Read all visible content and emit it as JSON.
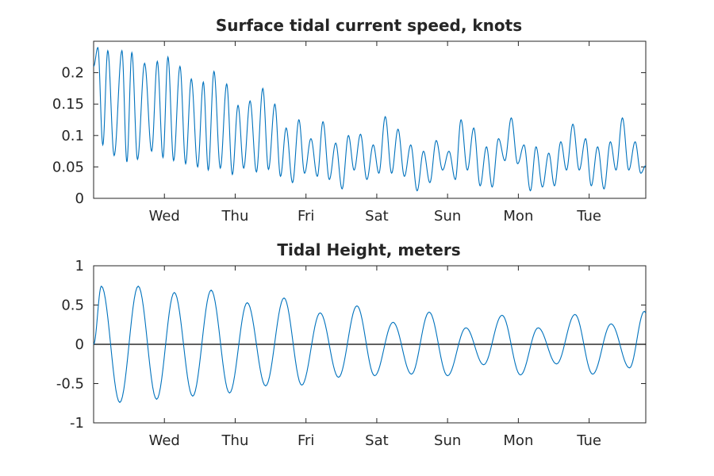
{
  "colors": {
    "series": "#0072bd",
    "axis": "#262626",
    "zero_line": "#000000",
    "background": "#ffffff"
  },
  "chart_data": [
    {
      "id": "speed",
      "type": "line",
      "title": "Surface tidal current speed, knots",
      "xlabel": "",
      "ylabel": "",
      "xlim": [
        0,
        7.8
      ],
      "ylim": [
        0,
        0.25
      ],
      "grid": false,
      "legend": "none",
      "x_ticks": [
        {
          "x": 1.0,
          "label": "Wed"
        },
        {
          "x": 2.0,
          "label": "Thu"
        },
        {
          "x": 3.0,
          "label": "Fri"
        },
        {
          "x": 4.0,
          "label": "Sat"
        },
        {
          "x": 5.0,
          "label": "Sun"
        },
        {
          "x": 6.0,
          "label": "Mon"
        },
        {
          "x": 7.0,
          "label": "Tue"
        }
      ],
      "y_ticks": [
        {
          "y": 0,
          "label": "0"
        },
        {
          "y": 0.05,
          "label": "0.05"
        },
        {
          "y": 0.1,
          "label": "0.1"
        },
        {
          "y": 0.15,
          "label": "0.15"
        },
        {
          "y": 0.2,
          "label": "0.2"
        }
      ],
      "series": [
        {
          "x": [
            0,
            0.06,
            0.13,
            0.2,
            0.29,
            0.4,
            0.47,
            0.54,
            0.62,
            0.72,
            0.82,
            0.9,
            0.98,
            1.05,
            1.13,
            1.22,
            1.3,
            1.38,
            1.47,
            1.55,
            1.62,
            1.7,
            1.79,
            1.88,
            1.96,
            2.04,
            2.12,
            2.21,
            2.3,
            2.39,
            2.47,
            2.56,
            2.64,
            2.72,
            2.81,
            2.9,
            2.98,
            3.07,
            3.16,
            3.24,
            3.33,
            3.42,
            3.51,
            3.6,
            3.68,
            3.77,
            3.86,
            3.95,
            4.03,
            4.12,
            4.21,
            4.3,
            4.39,
            4.48,
            4.57,
            4.66,
            4.75,
            4.84,
            4.93,
            5.02,
            5.11,
            5.19,
            5.28,
            5.37,
            5.46,
            5.55,
            5.63,
            5.72,
            5.81,
            5.9,
            5.99,
            6.08,
            6.17,
            6.25,
            6.34,
            6.43,
            6.51,
            6.6,
            6.68,
            6.77,
            6.86,
            6.95,
            7.03,
            7.12,
            7.21,
            7.3,
            7.38,
            7.47,
            7.56,
            7.65,
            7.73,
            7.8
          ],
          "y": [
            0.21,
            0.24,
            0.085,
            0.235,
            0.068,
            0.235,
            0.058,
            0.232,
            0.062,
            0.215,
            0.075,
            0.218,
            0.065,
            0.225,
            0.06,
            0.21,
            0.055,
            0.19,
            0.05,
            0.185,
            0.045,
            0.202,
            0.048,
            0.182,
            0.038,
            0.148,
            0.048,
            0.155,
            0.042,
            0.175,
            0.046,
            0.15,
            0.035,
            0.112,
            0.025,
            0.125,
            0.04,
            0.095,
            0.035,
            0.122,
            0.03,
            0.088,
            0.015,
            0.1,
            0.045,
            0.102,
            0.03,
            0.085,
            0.04,
            0.13,
            0.04,
            0.11,
            0.035,
            0.085,
            0.012,
            0.075,
            0.025,
            0.092,
            0.045,
            0.075,
            0.03,
            0.125,
            0.045,
            0.112,
            0.02,
            0.082,
            0.018,
            0.095,
            0.06,
            0.128,
            0.055,
            0.085,
            0.012,
            0.082,
            0.018,
            0.072,
            0.02,
            0.09,
            0.045,
            0.118,
            0.045,
            0.095,
            0.02,
            0.082,
            0.015,
            0.09,
            0.045,
            0.128,
            0.045,
            0.09,
            0.04,
            0.052
          ]
        }
      ]
    },
    {
      "id": "height",
      "type": "line",
      "title": "Tidal Height, meters",
      "xlabel": "",
      "ylabel": "",
      "xlim": [
        0,
        7.8
      ],
      "ylim": [
        -1,
        1
      ],
      "grid": false,
      "legend": "none",
      "reference_line_y": 0,
      "x_ticks": [
        {
          "x": 1.0,
          "label": "Wed"
        },
        {
          "x": 2.0,
          "label": "Thu"
        },
        {
          "x": 3.0,
          "label": "Fri"
        },
        {
          "x": 4.0,
          "label": "Sat"
        },
        {
          "x": 5.0,
          "label": "Sun"
        },
        {
          "x": 6.0,
          "label": "Mon"
        },
        {
          "x": 7.0,
          "label": "Tue"
        }
      ],
      "y_ticks": [
        {
          "y": -1,
          "label": "-1"
        },
        {
          "y": -0.5,
          "label": "-0.5"
        },
        {
          "y": 0,
          "label": "0"
        },
        {
          "y": 0.5,
          "label": "0.5"
        },
        {
          "y": 1,
          "label": "1"
        }
      ],
      "series": [
        {
          "x": [
            0,
            0.11,
            0.37,
            0.63,
            0.89,
            1.14,
            1.4,
            1.66,
            1.92,
            2.17,
            2.43,
            2.69,
            2.94,
            3.2,
            3.46,
            3.72,
            3.97,
            4.23,
            4.49,
            4.74,
            5.0,
            5.26,
            5.51,
            5.77,
            6.03,
            6.28,
            6.54,
            6.8,
            7.05,
            7.31,
            7.57,
            7.78,
            7.8
          ],
          "y": [
            0.0,
            0.74,
            -0.74,
            0.74,
            -0.7,
            0.66,
            -0.66,
            0.69,
            -0.62,
            0.53,
            -0.53,
            0.59,
            -0.52,
            0.4,
            -0.42,
            0.49,
            -0.4,
            0.28,
            -0.38,
            0.41,
            -0.4,
            0.21,
            -0.26,
            0.37,
            -0.39,
            0.21,
            -0.25,
            0.38,
            -0.38,
            0.26,
            -0.3,
            0.42,
            0.4
          ]
        }
      ]
    }
  ]
}
